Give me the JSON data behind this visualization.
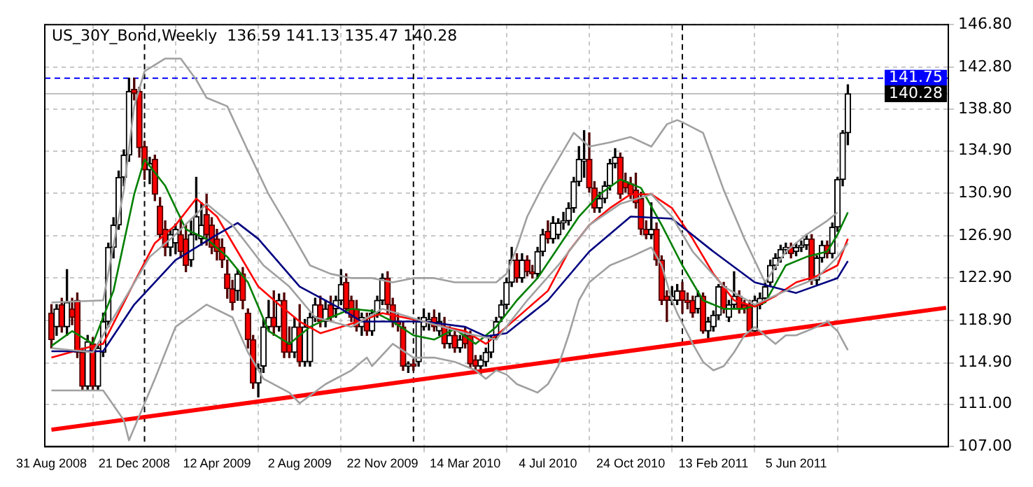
{
  "chart_data": {
    "type": "candlestick",
    "title": "US_30Y_Bond,Weekly  136.59 141.13 135.47 140.28",
    "x": [
      "2008-08-31",
      "2008-09-07",
      "2008-09-14",
      "2008-09-21",
      "2008-09-28",
      "2008-10-05",
      "2008-10-12",
      "2008-10-19",
      "2008-10-26",
      "2008-11-02",
      "2008-11-09",
      "2008-11-16",
      "2008-11-23",
      "2008-11-30",
      "2008-12-07",
      "2008-12-14",
      "2008-12-21",
      "2008-12-28",
      "2009-01-04",
      "2009-01-11",
      "2009-01-18",
      "2009-01-25",
      "2009-02-01",
      "2009-02-08",
      "2009-02-15",
      "2009-02-22",
      "2009-03-01",
      "2009-03-08",
      "2009-03-15",
      "2009-03-22",
      "2009-03-29",
      "2009-04-05",
      "2009-04-12",
      "2009-04-19",
      "2009-04-26",
      "2009-05-03",
      "2009-05-10",
      "2009-05-17",
      "2009-05-24",
      "2009-05-31",
      "2009-06-07",
      "2009-06-14",
      "2009-06-21",
      "2009-06-28",
      "2009-07-05",
      "2009-07-12",
      "2009-07-19",
      "2009-07-26",
      "2009-08-02",
      "2009-08-09",
      "2009-08-16",
      "2009-08-23",
      "2009-08-30",
      "2009-09-06",
      "2009-09-13",
      "2009-09-20",
      "2009-09-27",
      "2009-10-04",
      "2009-10-11",
      "2009-10-18",
      "2009-10-25",
      "2009-11-01",
      "2009-11-08",
      "2009-11-15",
      "2009-11-22",
      "2009-11-29",
      "2009-12-06",
      "2009-12-13",
      "2009-12-20",
      "2009-12-27",
      "2010-01-03",
      "2010-01-10",
      "2010-01-17",
      "2010-01-24",
      "2010-01-31",
      "2010-02-07",
      "2010-02-14",
      "2010-02-21",
      "2010-02-28",
      "2010-03-07",
      "2010-03-14",
      "2010-03-21",
      "2010-03-28",
      "2010-04-04",
      "2010-04-11",
      "2010-04-18",
      "2010-04-25",
      "2010-05-02",
      "2010-05-09",
      "2010-05-16",
      "2010-05-23",
      "2010-05-30",
      "2010-06-06",
      "2010-06-13",
      "2010-06-20",
      "2010-06-27",
      "2010-07-04",
      "2010-07-11",
      "2010-07-18",
      "2010-07-25",
      "2010-08-01",
      "2010-08-08",
      "2010-08-15",
      "2010-08-22",
      "2010-08-29",
      "2010-09-05",
      "2010-09-12",
      "2010-09-19",
      "2010-09-26",
      "2010-10-03",
      "2010-10-10",
      "2010-10-17",
      "2010-10-24",
      "2010-10-31",
      "2010-11-07",
      "2010-11-14",
      "2010-11-21",
      "2010-11-28",
      "2010-12-05",
      "2010-12-12",
      "2010-12-19",
      "2010-12-26",
      "2011-01-02",
      "2011-01-09",
      "2011-01-16",
      "2011-01-23",
      "2011-01-30",
      "2011-02-06",
      "2011-02-13",
      "2011-02-20",
      "2011-02-27",
      "2011-03-06",
      "2011-03-13",
      "2011-03-20",
      "2011-03-27",
      "2011-04-03",
      "2011-04-10",
      "2011-04-17",
      "2011-04-24",
      "2011-05-01",
      "2011-05-08",
      "2011-05-15",
      "2011-05-22",
      "2011-05-29",
      "2011-06-05",
      "2011-06-12",
      "2011-06-19",
      "2011-06-26",
      "2011-07-03",
      "2011-07-10",
      "2011-07-17",
      "2011-07-24",
      "2011-07-31",
      "2011-08-07",
      "2011-08-14"
    ],
    "ohlc": [
      [
        119.6,
        120.4,
        116.3,
        117.1
      ],
      [
        118.3,
        120.4,
        117.5,
        120.0
      ],
      [
        120.4,
        121.0,
        117.8,
        118.3
      ],
      [
        118.3,
        123.7,
        117.5,
        120.6
      ],
      [
        120.0,
        121.0,
        118.5,
        119.2
      ],
      [
        120.8,
        121.5,
        115.4,
        115.9
      ],
      [
        115.9,
        116.3,
        112.3,
        112.7
      ],
      [
        112.7,
        117.5,
        112.3,
        116.9
      ],
      [
        116.7,
        117.3,
        112.3,
        112.7
      ],
      [
        112.7,
        116.7,
        112.3,
        116.3
      ],
      [
        115.9,
        119.6,
        115.5,
        118.8
      ],
      [
        118.8,
        126.2,
        118.3,
        125.8
      ],
      [
        125.8,
        128.6,
        124.8,
        127.9
      ],
      [
        127.9,
        133.0,
        127.5,
        132.4
      ],
      [
        132.4,
        135.0,
        131.6,
        134.5
      ],
      [
        134.5,
        141.75,
        133.9,
        140.5
      ],
      [
        140.7,
        141.75,
        139.7,
        140.3
      ],
      [
        140.5,
        140.9,
        134.3,
        135.2
      ],
      [
        135.3,
        135.8,
        132.2,
        133.1
      ],
      [
        133.1,
        134.3,
        131.8,
        133.7
      ],
      [
        134.1,
        134.5,
        130.2,
        130.8
      ],
      [
        129.7,
        130.5,
        126.6,
        127.0
      ],
      [
        127.5,
        128.3,
        125.0,
        125.8
      ],
      [
        125.8,
        127.5,
        125.0,
        127.0
      ],
      [
        126.2,
        128.0,
        125.2,
        127.5
      ],
      [
        127.0,
        128.7,
        124.8,
        125.4
      ],
      [
        126.6,
        127.9,
        123.5,
        124.1
      ],
      [
        124.6,
        128.3,
        124.0,
        127.0
      ],
      [
        127.0,
        132.4,
        126.5,
        128.7
      ],
      [
        126.6,
        130.0,
        126.0,
        127.9
      ],
      [
        128.9,
        130.8,
        126.0,
        127.0
      ],
      [
        127.9,
        128.6,
        125.2,
        125.8
      ],
      [
        126.6,
        127.5,
        124.6,
        125.4
      ],
      [
        125.8,
        126.6,
        123.9,
        124.6
      ],
      [
        123.3,
        124.6,
        121.0,
        121.9
      ],
      [
        121.9,
        122.7,
        119.9,
        120.6
      ],
      [
        121.7,
        123.7,
        120.8,
        123.3
      ],
      [
        123.3,
        123.9,
        120.0,
        120.8
      ],
      [
        119.6,
        120.0,
        116.3,
        117.1
      ],
      [
        117.1,
        117.5,
        112.5,
        113.0
      ],
      [
        113.0,
        114.8,
        111.7,
        114.4
      ],
      [
        114.6,
        119.0,
        114.0,
        118.3
      ],
      [
        118.3,
        120.8,
        117.9,
        119.2
      ],
      [
        119.2,
        121.7,
        117.5,
        118.3
      ],
      [
        118.3,
        121.4,
        117.9,
        120.8
      ],
      [
        120.8,
        121.5,
        115.4,
        115.9
      ],
      [
        116.7,
        118.3,
        115.4,
        115.9
      ],
      [
        115.9,
        119.2,
        115.4,
        118.3
      ],
      [
        118.3,
        120.4,
        114.6,
        115.0
      ],
      [
        115.0,
        119.0,
        114.6,
        118.3
      ],
      [
        115.0,
        119.6,
        114.6,
        119.2
      ],
      [
        119.2,
        121.0,
        118.8,
        120.4
      ],
      [
        120.4,
        121.2,
        118.3,
        118.8
      ],
      [
        118.8,
        120.8,
        118.3,
        120.0
      ],
      [
        120.4,
        121.2,
        118.8,
        119.2
      ],
      [
        120.0,
        121.2,
        119.2,
        120.8
      ],
      [
        120.8,
        123.7,
        120.4,
        122.3
      ],
      [
        122.5,
        123.3,
        119.6,
        120.0
      ],
      [
        120.8,
        121.2,
        118.8,
        119.2
      ],
      [
        120.0,
        120.8,
        117.9,
        118.3
      ],
      [
        118.3,
        119.6,
        117.5,
        119.2
      ],
      [
        118.8,
        119.6,
        117.5,
        117.9
      ],
      [
        117.9,
        119.9,
        117.5,
        119.6
      ],
      [
        119.6,
        121.2,
        119.2,
        120.8
      ],
      [
        120.8,
        123.3,
        120.4,
        122.9
      ],
      [
        122.9,
        123.5,
        119.6,
        120.4
      ],
      [
        120.4,
        121.0,
        118.3,
        118.8
      ],
      [
        118.8,
        119.6,
        117.9,
        118.5
      ],
      [
        118.3,
        118.8,
        114.2,
        114.6
      ],
      [
        114.6,
        115.0,
        114.0,
        114.8
      ],
      [
        114.8,
        115.2,
        114.2,
        114.6
      ],
      [
        115.0,
        119.2,
        114.6,
        118.8
      ],
      [
        118.3,
        120.0,
        118.0,
        119.2
      ],
      [
        118.8,
        119.6,
        118.0,
        119.0
      ],
      [
        119.2,
        119.9,
        117.9,
        118.3
      ],
      [
        117.9,
        119.6,
        117.5,
        118.8
      ],
      [
        118.3,
        119.2,
        116.3,
        116.7
      ],
      [
        116.7,
        118.3,
        116.3,
        117.5
      ],
      [
        117.5,
        118.0,
        115.9,
        116.3
      ],
      [
        116.3,
        117.5,
        115.9,
        117.1
      ],
      [
        117.5,
        118.3,
        116.3,
        116.7
      ],
      [
        117.5,
        117.9,
        114.4,
        114.8
      ],
      [
        115.2,
        115.6,
        114.2,
        114.6
      ],
      [
        114.6,
        115.6,
        113.8,
        115.2
      ],
      [
        115.0,
        116.3,
        114.6,
        115.9
      ],
      [
        115.9,
        117.5,
        115.4,
        117.3
      ],
      [
        117.5,
        119.2,
        117.1,
        118.8
      ],
      [
        119.2,
        120.8,
        118.8,
        120.4
      ],
      [
        120.4,
        122.9,
        120.0,
        122.5
      ],
      [
        122.5,
        125.8,
        122.1,
        124.6
      ],
      [
        124.6,
        125.2,
        122.5,
        122.9
      ],
      [
        122.9,
        125.2,
        122.5,
        124.6
      ],
      [
        124.6,
        125.0,
        123.1,
        123.5
      ],
      [
        123.5,
        124.1,
        122.9,
        123.3
      ],
      [
        123.3,
        125.8,
        122.9,
        125.4
      ],
      [
        125.4,
        127.5,
        125.0,
        127.0
      ],
      [
        127.3,
        128.3,
        126.2,
        126.6
      ],
      [
        126.6,
        128.7,
        126.2,
        128.1
      ],
      [
        127.0,
        128.5,
        126.6,
        128.1
      ],
      [
        128.1,
        129.1,
        127.5,
        128.3
      ],
      [
        128.3,
        130.0,
        127.9,
        129.5
      ],
      [
        129.5,
        132.4,
        129.1,
        132.0
      ],
      [
        132.0,
        135.3,
        131.6,
        134.1
      ],
      [
        133.9,
        136.8,
        132.4,
        134.1
      ],
      [
        134.1,
        136.6,
        131.0,
        131.4
      ],
      [
        131.4,
        132.0,
        129.1,
        129.5
      ],
      [
        129.5,
        131.0,
        129.1,
        130.4
      ],
      [
        130.4,
        132.0,
        130.0,
        131.6
      ],
      [
        131.6,
        134.1,
        131.2,
        133.7
      ],
      [
        133.7,
        135.1,
        133.3,
        134.3
      ],
      [
        134.3,
        134.7,
        130.4,
        130.8
      ],
      [
        132.0,
        132.8,
        131.0,
        131.4
      ],
      [
        131.8,
        132.4,
        130.4,
        130.8
      ],
      [
        131.2,
        132.8,
        129.5,
        130.0
      ],
      [
        130.4,
        131.0,
        127.0,
        127.5
      ],
      [
        127.5,
        128.3,
        126.6,
        127.0
      ],
      [
        127.0,
        130.0,
        126.6,
        127.5
      ],
      [
        127.5,
        128.1,
        124.1,
        124.6
      ],
      [
        124.6,
        125.0,
        120.4,
        120.8
      ],
      [
        121.2,
        121.7,
        118.8,
        120.8
      ],
      [
        120.8,
        122.1,
        120.4,
        121.2
      ],
      [
        120.8,
        122.3,
        120.4,
        121.7
      ],
      [
        121.7,
        122.5,
        119.6,
        120.8
      ],
      [
        120.8,
        121.5,
        120.0,
        120.6
      ],
      [
        120.8,
        121.2,
        119.2,
        119.6
      ],
      [
        120.0,
        121.7,
        119.6,
        121.2
      ],
      [
        121.2,
        121.5,
        117.7,
        117.9
      ],
      [
        117.9,
        119.2,
        117.1,
        118.8
      ],
      [
        118.3,
        119.8,
        117.9,
        119.4
      ],
      [
        119.4,
        122.3,
        119.0,
        122.1
      ],
      [
        122.1,
        122.5,
        119.6,
        120.0
      ],
      [
        119.2,
        120.8,
        118.8,
        120.4
      ],
      [
        120.4,
        123.5,
        120.0,
        121.2
      ],
      [
        121.2,
        121.7,
        119.6,
        120.0
      ],
      [
        120.4,
        120.8,
        119.6,
        120.0
      ],
      [
        120.4,
        120.8,
        117.7,
        117.9
      ],
      [
        117.9,
        121.2,
        117.5,
        120.8
      ],
      [
        120.4,
        121.5,
        120.0,
        121.0
      ],
      [
        121.0,
        122.5,
        120.6,
        122.1
      ],
      [
        122.5,
        124.6,
        122.1,
        124.1
      ],
      [
        124.1,
        125.2,
        123.7,
        124.8
      ],
      [
        124.8,
        126.0,
        124.4,
        125.6
      ],
      [
        125.6,
        126.2,
        125.2,
        125.8
      ],
      [
        125.8,
        126.2,
        124.8,
        125.2
      ],
      [
        125.4,
        126.2,
        125.0,
        125.8
      ],
      [
        125.8,
        126.4,
        125.4,
        126.0
      ],
      [
        126.0,
        127.0,
        125.6,
        126.6
      ],
      [
        126.6,
        127.0,
        122.3,
        122.7
      ],
      [
        122.7,
        125.0,
        122.3,
        124.8
      ],
      [
        124.8,
        126.4,
        124.4,
        126.0
      ],
      [
        126.0,
        126.4,
        124.8,
        125.2
      ],
      [
        125.2,
        128.1,
        124.8,
        127.7
      ],
      [
        127.7,
        132.4,
        127.3,
        132.2
      ],
      [
        132.2,
        136.8,
        131.6,
        136.6
      ],
      [
        136.59,
        141.13,
        135.47,
        140.28
      ]
    ],
    "series": [
      {
        "type": "line",
        "color": "#a0a0a0",
        "x": [
          "2008-08-31",
          "2008-11-09",
          "2008-12-07",
          "2008-12-21",
          "2009-01-04",
          "2009-02-01",
          "2009-02-22",
          "2009-03-15",
          "2009-03-29",
          "2009-04-26",
          "2009-05-24",
          "2009-06-21",
          "2009-07-19",
          "2009-08-16",
          "2009-09-13",
          "2009-10-11",
          "2009-11-08",
          "2009-12-06",
          "2010-01-03",
          "2010-01-31",
          "2010-02-28",
          "2010-03-28",
          "2010-04-25",
          "2010-05-09",
          "2010-05-23",
          "2010-06-06",
          "2010-06-27",
          "2010-07-18",
          "2010-08-08",
          "2010-08-29",
          "2010-09-26",
          "2010-10-24",
          "2010-11-21",
          "2010-12-12",
          "2010-12-26",
          "2011-01-02",
          "2011-01-30",
          "2011-02-27",
          "2011-03-27",
          "2011-04-24",
          "2011-05-22",
          "2011-06-19",
          "2011-07-17",
          "2011-07-31"
        ],
        "values": [
          120.6,
          120.8,
          131.2,
          139.1,
          142.4,
          143.6,
          143.6,
          141.6,
          139.9,
          139.1,
          134.9,
          130.8,
          127.5,
          124.1,
          123.3,
          122.9,
          122.9,
          122.5,
          122.9,
          122.9,
          122.5,
          122.5,
          122.5,
          123.3,
          125.8,
          128.7,
          131.6,
          134.1,
          136.6,
          135.3,
          135.7,
          136.2,
          135.3,
          137.4,
          137.8,
          137.6,
          136.6,
          131.2,
          126.6,
          122.5,
          125.4,
          127.0,
          128.3,
          129.1
        ]
      },
      {
        "type": "line",
        "color": "#a0a0a0",
        "x": [
          "2008-08-31",
          "2008-11-09",
          "2008-12-07",
          "2008-12-14",
          "2009-01-18",
          "2009-02-15",
          "2009-03-29",
          "2009-05-03",
          "2009-05-24",
          "2009-06-14",
          "2009-07-19",
          "2009-08-02",
          "2009-09-06",
          "2009-10-11",
          "2009-11-01",
          "2009-11-08",
          "2009-12-06",
          "2010-01-03",
          "2010-01-31",
          "2010-02-28",
          "2010-03-28",
          "2010-04-11",
          "2010-04-25",
          "2010-05-09",
          "2010-05-23",
          "2010-06-06",
          "2010-06-20",
          "2010-07-04",
          "2010-07-18",
          "2010-08-01",
          "2010-08-15",
          "2010-08-29",
          "2010-09-26",
          "2010-10-24",
          "2010-11-21",
          "2010-12-05",
          "2010-12-19",
          "2010-12-26",
          "2011-01-16",
          "2011-01-30",
          "2011-02-13",
          "2011-02-27",
          "2011-03-13",
          "2011-03-27",
          "2011-04-10",
          "2011-04-24",
          "2011-05-08",
          "2011-05-22",
          "2011-06-05",
          "2011-06-19",
          "2011-07-03",
          "2011-07-17",
          "2011-07-31",
          "2011-08-14"
        ],
        "values": [
          112.3,
          112.3,
          109.5,
          107.6,
          113.4,
          118.3,
          120.4,
          119.2,
          115.9,
          113.4,
          112.1,
          111.1,
          112.9,
          114.2,
          115.4,
          114.6,
          116.7,
          115.4,
          115.4,
          115.0,
          114.2,
          113.4,
          114.2,
          113.8,
          112.9,
          112.5,
          112.1,
          112.9,
          114.6,
          117.5,
          120.8,
          122.5,
          124.1,
          124.9,
          125.8,
          124.1,
          120.8,
          119.6,
          116.7,
          115.0,
          114.2,
          114.6,
          115.9,
          117.5,
          118.3,
          117.5,
          116.7,
          117.5,
          117.5,
          117.9,
          118.3,
          118.8,
          117.9,
          116.1
        ]
      },
      {
        "type": "line",
        "color": "#a0a0a0",
        "x": [
          "2008-08-31",
          "2008-10-26",
          "2008-12-07",
          "2009-01-11",
          "2009-02-15",
          "2009-03-29",
          "2009-05-03",
          "2009-06-14",
          "2009-07-19",
          "2009-08-23",
          "2009-10-11",
          "2009-11-22",
          "2010-01-17",
          "2010-03-14",
          "2010-04-25",
          "2010-06-06",
          "2010-07-18",
          "2010-08-29",
          "2010-10-10",
          "2010-11-21",
          "2010-12-19",
          "2011-01-16",
          "2011-02-27",
          "2011-04-10",
          "2011-05-22",
          "2011-07-03",
          "2011-07-31",
          "2011-08-14"
        ],
        "values": [
          116.3,
          115.9,
          120.8,
          124.9,
          127.0,
          129.9,
          127.9,
          124.1,
          122.1,
          119.2,
          118.3,
          120.0,
          118.8,
          117.7,
          117.1,
          120.8,
          124.1,
          127.9,
          129.9,
          130.8,
          128.7,
          125.4,
          122.1,
          120.4,
          121.7,
          122.9,
          124.9,
          126.2
        ]
      },
      {
        "type": "line",
        "color": "#000080",
        "x": [
          "2008-08-31",
          "2008-11-09",
          "2008-12-21",
          "2009-02-15",
          "2009-04-12",
          "2009-05-10",
          "2009-06-07",
          "2009-08-02",
          "2009-09-27",
          "2009-10-25",
          "2009-11-22",
          "2010-01-17",
          "2010-03-14",
          "2010-04-11",
          "2010-05-09",
          "2010-07-04",
          "2010-08-29",
          "2010-10-24",
          "2010-12-19",
          "2011-02-13",
          "2011-04-10",
          "2011-06-05",
          "2011-07-31",
          "2011-08-14"
        ],
        "values": [
          116.0,
          116.0,
          120.4,
          124.6,
          127.0,
          128.1,
          126.6,
          122.1,
          120.0,
          118.8,
          118.8,
          118.8,
          118.3,
          117.4,
          117.7,
          120.8,
          125.4,
          128.7,
          128.5,
          125.4,
          122.5,
          121.5,
          122.9,
          124.5
        ]
      },
      {
        "type": "line",
        "color": "#ff0000",
        "x": [
          "2008-08-31",
          "2008-10-26",
          "2008-11-09",
          "2008-12-21",
          "2009-01-18",
          "2009-02-15",
          "2009-03-15",
          "2009-04-12",
          "2009-05-10",
          "2009-06-07",
          "2009-07-05",
          "2009-08-02",
          "2009-08-30",
          "2009-09-27",
          "2009-10-25",
          "2009-11-22",
          "2009-12-20",
          "2010-01-17",
          "2010-02-14",
          "2010-03-14",
          "2010-04-11",
          "2010-05-09",
          "2010-06-06",
          "2010-07-04",
          "2010-08-01",
          "2010-08-29",
          "2010-09-26",
          "2010-10-24",
          "2010-11-21",
          "2010-12-19",
          "2011-01-16",
          "2011-02-13",
          "2011-03-13",
          "2011-04-10",
          "2011-05-08",
          "2011-06-05",
          "2011-07-03",
          "2011-07-31",
          "2011-08-14"
        ],
        "values": [
          115.4,
          116.5,
          116.7,
          122.5,
          126.2,
          127.9,
          130.4,
          128.7,
          125.4,
          122.1,
          120.4,
          118.8,
          117.7,
          118.3,
          118.9,
          119.6,
          119.2,
          118.8,
          118.3,
          117.9,
          116.7,
          118.3,
          120.0,
          121.7,
          125.4,
          127.9,
          129.5,
          130.8,
          130.8,
          129.5,
          126.6,
          123.3,
          120.8,
          120.2,
          121.2,
          122.5,
          123.1,
          124.1,
          126.6
        ]
      },
      {
        "type": "line",
        "color": "#008000",
        "x": [
          "2008-08-31",
          "2008-09-28",
          "2008-10-26",
          "2008-11-23",
          "2008-12-21",
          "2009-01-04",
          "2009-02-01",
          "2009-03-01",
          "2009-03-29",
          "2009-04-26",
          "2009-05-24",
          "2009-06-21",
          "2009-07-19",
          "2009-08-16",
          "2009-09-13",
          "2009-10-11",
          "2009-11-08",
          "2009-12-06",
          "2010-01-03",
          "2010-01-31",
          "2010-02-28",
          "2010-03-28",
          "2010-04-25",
          "2010-05-23",
          "2010-06-20",
          "2010-07-18",
          "2010-08-15",
          "2010-09-12",
          "2010-10-10",
          "2010-11-07",
          "2010-12-05",
          "2011-01-02",
          "2011-01-30",
          "2011-02-27",
          "2011-03-27",
          "2011-04-24",
          "2011-05-22",
          "2011-06-19",
          "2011-07-17",
          "2011-07-31",
          "2011-08-14"
        ],
        "values": [
          116.5,
          117.9,
          116.7,
          121.7,
          130.8,
          134.1,
          131.6,
          127.5,
          126.6,
          124.9,
          122.5,
          117.9,
          116.7,
          118.3,
          119.2,
          120.0,
          119.8,
          118.8,
          117.5,
          117.1,
          118.1,
          116.7,
          118.3,
          120.8,
          122.9,
          125.8,
          128.7,
          130.8,
          132.2,
          131.4,
          127.9,
          124.1,
          120.8,
          120.0,
          120.0,
          120.6,
          124.1,
          124.9,
          125.4,
          127.0,
          129.1
        ]
      },
      {
        "type": "line",
        "color": "#ff0000",
        "x": [
          "2008-08-31",
          "2011-12-25"
        ],
        "values": [
          108.6,
          120.1
        ]
      }
    ],
    "ref_lines": [
      {
        "axis": "y",
        "value": 141.75,
        "label": "141.75",
        "color": "#0000ff",
        "line_style": "dashed"
      },
      {
        "axis": "y",
        "value": 140.28,
        "label": "140.28",
        "color": "#c0c0c0",
        "line_style": "solid"
      },
      {
        "axis": "x",
        "value": "2009-01-04",
        "color": "#000000",
        "line_style": "dashed"
      },
      {
        "axis": "x",
        "value": "2010-01-03",
        "color": "#000000",
        "line_style": "dashed"
      },
      {
        "axis": "x",
        "value": "2011-01-02",
        "color": "#000000",
        "line_style": "dashed"
      }
    ],
    "xlim": [
      "2008-08-22",
      "2011-12-28"
    ],
    "xticks": [
      {
        "value": "2008-08-31",
        "label": "31 Aug 2008"
      },
      {
        "value": "2008-12-21",
        "label": "21 Dec 2008"
      },
      {
        "value": "2009-04-12",
        "label": "12 Apr 2009"
      },
      {
        "value": "2009-08-02",
        "label": "2 Aug 2009"
      },
      {
        "value": "2009-11-22",
        "label": "22 Nov 2009"
      },
      {
        "value": "2010-03-14",
        "label": "14 Mar 2010"
      },
      {
        "value": "2010-07-04",
        "label": "4 Jul 2010"
      },
      {
        "value": "2010-10-24",
        "label": "24 Oct 2010"
      },
      {
        "value": "2011-02-13",
        "label": "13 Feb 2011"
      },
      {
        "value": "2011-06-05",
        "label": "5 Jun 2011"
      }
    ],
    "ylim": [
      107,
      146.8
    ],
    "yticks": [
      {
        "value": 107,
        "label": "107.00"
      },
      {
        "value": 111,
        "label": "111.00"
      },
      {
        "value": 114.9,
        "label": "114.90"
      },
      {
        "value": 118.9,
        "label": "118.90"
      },
      {
        "value": 122.9,
        "label": "122.90"
      },
      {
        "value": 126.9,
        "label": "126.90"
      },
      {
        "value": 130.9,
        "label": "130.90"
      },
      {
        "value": 134.9,
        "label": "134.90"
      },
      {
        "value": 138.8,
        "label": "138.80"
      },
      {
        "value": 142.8,
        "label": "142.80"
      },
      {
        "value": 146.8,
        "label": "146.80"
      }
    ],
    "grid": true
  }
}
